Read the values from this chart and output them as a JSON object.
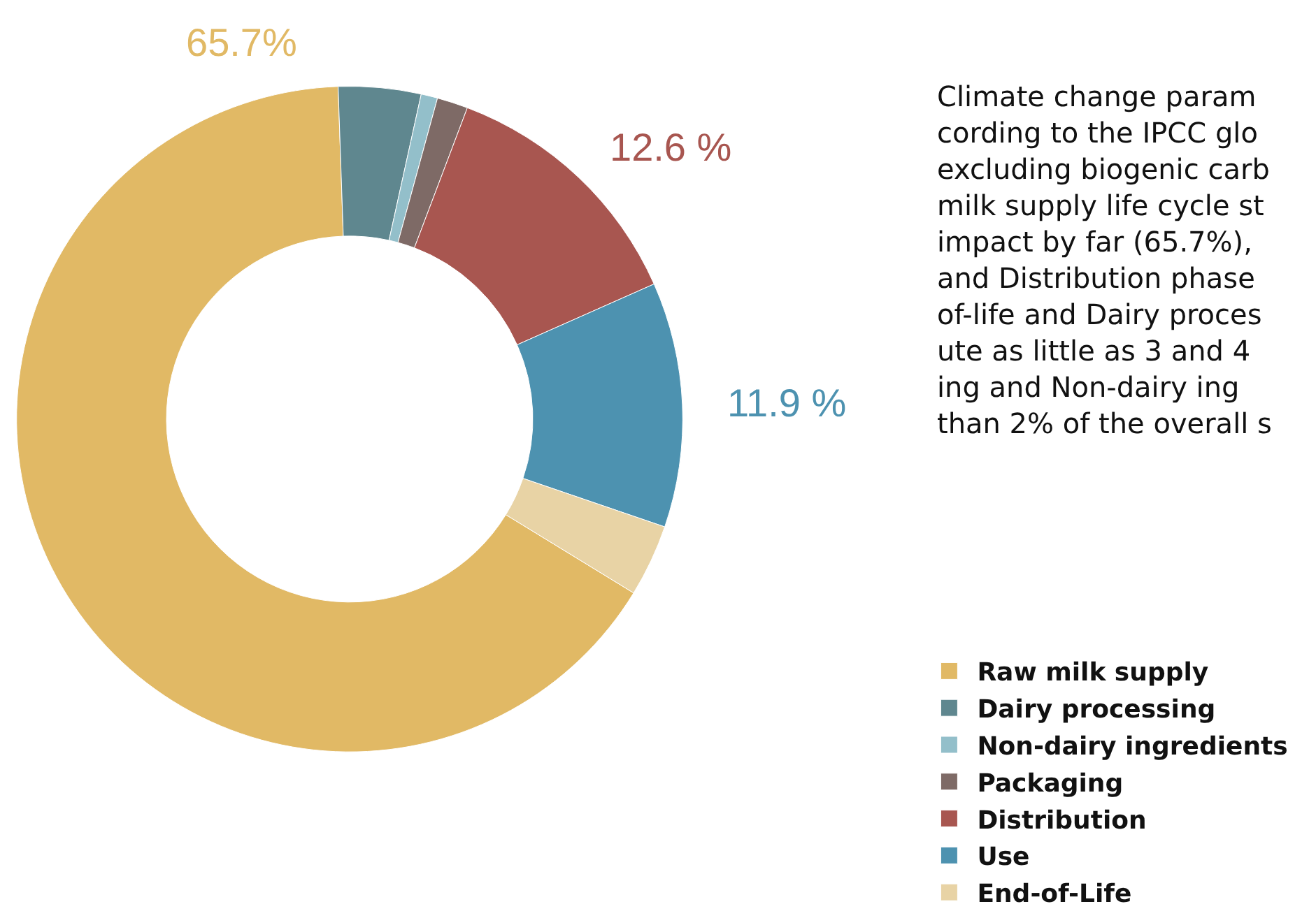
{
  "chart_data": {
    "type": "donut",
    "categories": [
      "Raw milk supply",
      "Dairy processing",
      "Non-dairy ingredients",
      "Packaging",
      "Distribution",
      "Use",
      "End-of-Life"
    ],
    "values": [
      65.7,
      4,
      0.8,
      1.5,
      12.6,
      11.9,
      3.5
    ],
    "colors": [
      "#e1b965",
      "#5f878f",
      "#93bfca",
      "#7e6a66",
      "#a85650",
      "#4d92b0",
      "#e8d3a5"
    ],
    "value_labels": [
      "65.7%",
      null,
      null,
      null,
      "12.6 %",
      "11.9 %",
      null
    ],
    "annotations": [
      "Climate change param\ncording to the IPCC glo\nexcluding biogenic carb\nmilk supply life cycle st\nimpact by far (65.7%),\nand Distribution phase\nof-life and Dairy proces\nute as little as 3 and 4\ning and Non-dairy ing\nthan 2% of the overall s"
    ],
    "legend": "bottom right"
  }
}
